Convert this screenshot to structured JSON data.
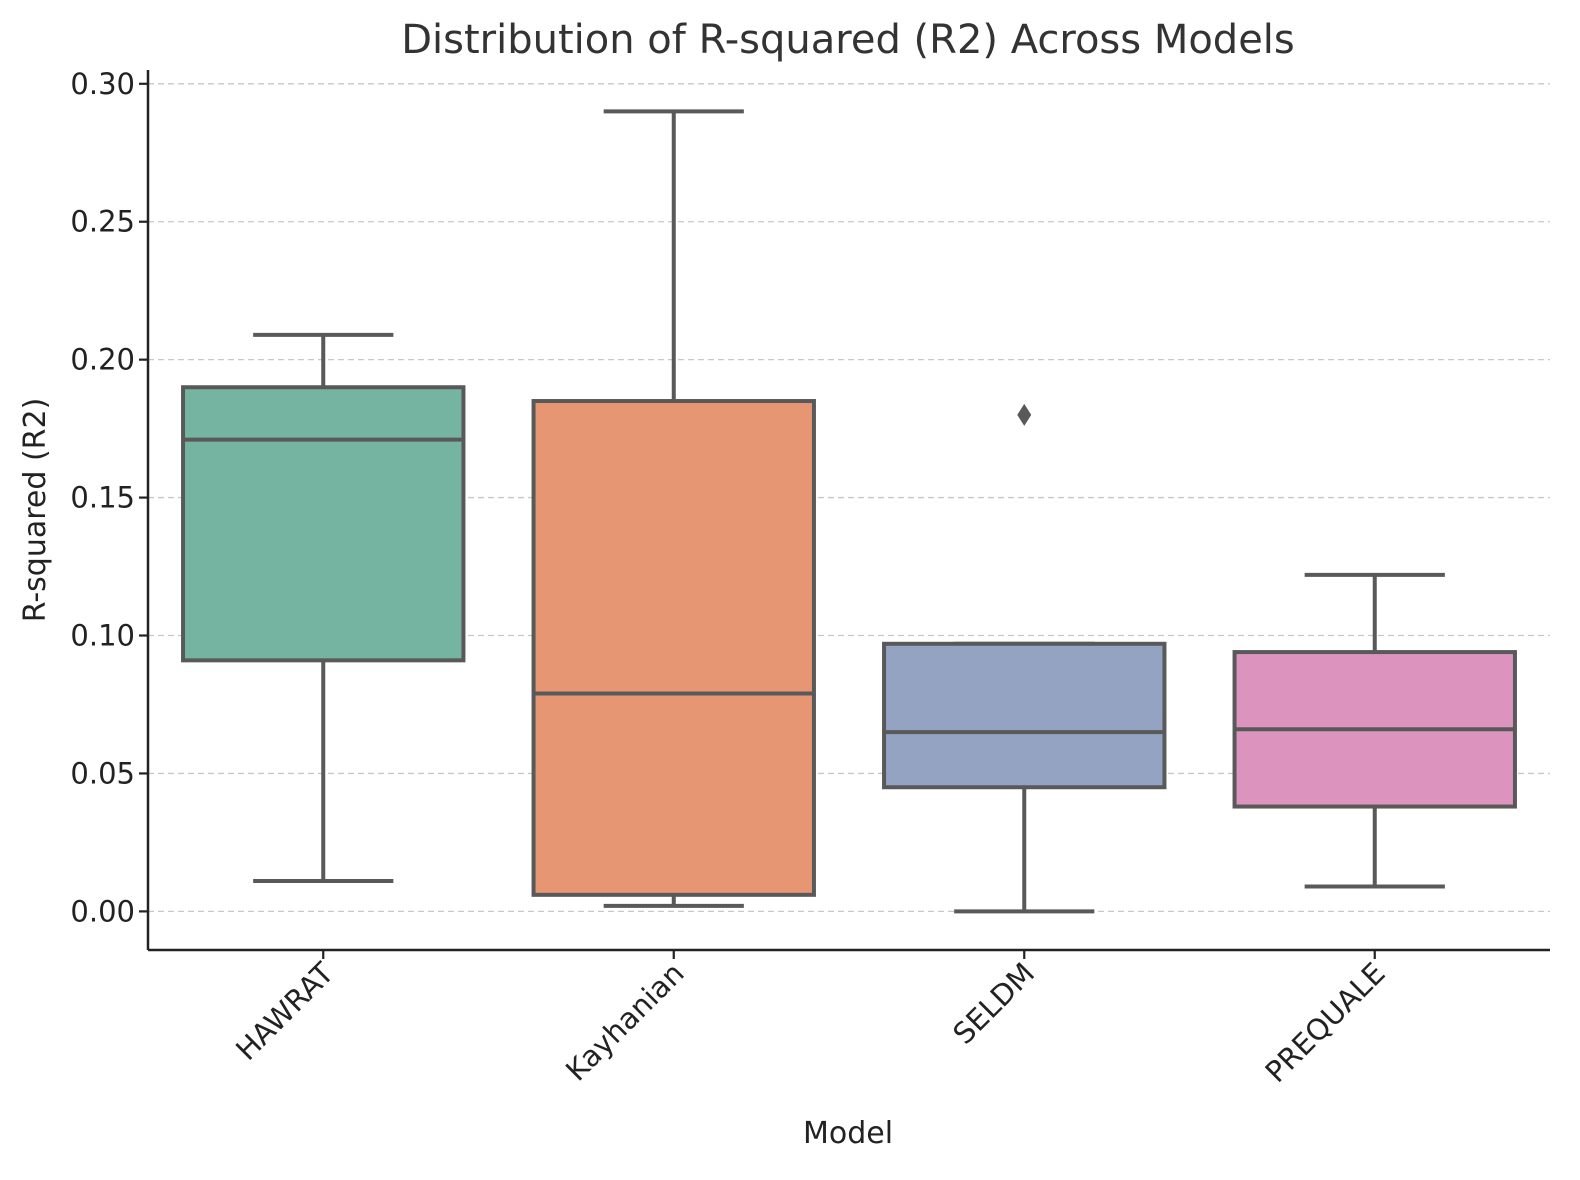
{
  "chart_data": {
    "type": "box",
    "title": "Distribution of R-squared (R2) Across Models",
    "xlabel": "Model",
    "ylabel": "R-squared (R2)",
    "ylim": [
      -0.014,
      0.305
    ],
    "yticks": [
      "0.00",
      "0.05",
      "0.10",
      "0.15",
      "0.20",
      "0.25",
      "0.30"
    ],
    "ytick_values": [
      0.0,
      0.05,
      0.1,
      0.15,
      0.2,
      0.25,
      0.3
    ],
    "grid": "horizontal dashed",
    "categories": [
      "HAWRAT",
      "Kayhanian",
      "SELDM",
      "PREQUALE"
    ],
    "boxes": [
      {
        "name": "HAWRAT",
        "whisker_low": 0.011,
        "q1": 0.091,
        "median": 0.171,
        "q3": 0.19,
        "whisker_high": 0.209,
        "outliers": [],
        "color": "#74b4a0"
      },
      {
        "name": "Kayhanian",
        "whisker_low": 0.002,
        "q1": 0.006,
        "median": 0.079,
        "q3": 0.185,
        "whisker_high": 0.29,
        "outliers": [],
        "color": "#e79674"
      },
      {
        "name": "SELDM",
        "whisker_low": 0.0,
        "q1": 0.045,
        "median": 0.065,
        "q3": 0.097,
        "whisker_high": 0.097,
        "outliers": [
          0.18
        ],
        "color": "#94a3c2"
      },
      {
        "name": "PREQUALE",
        "whisker_low": 0.009,
        "q1": 0.038,
        "median": 0.066,
        "q3": 0.094,
        "whisker_high": 0.122,
        "outliers": [],
        "color": "#dc94bf"
      }
    ]
  }
}
